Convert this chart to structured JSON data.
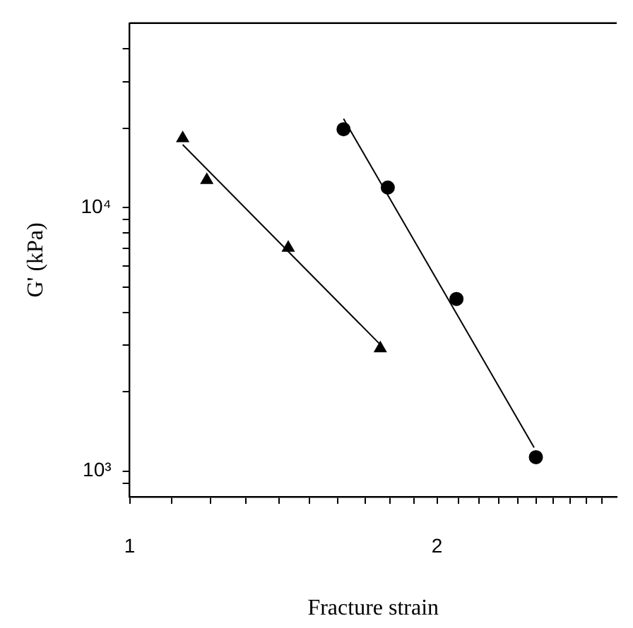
{
  "chart_data": {
    "type": "scatter",
    "xlabel": "Fracture strain",
    "ylabel": "G' (kPa)",
    "log": "xy",
    "grid": false,
    "legend": false,
    "xlim": [
      1,
      3
    ],
    "ylim": [
      800,
      50000
    ],
    "xticks": [
      1,
      {
        "value": 1.1,
        "label": null
      },
      {
        "value": 1.2,
        "label": null
      },
      {
        "value": 1.3,
        "label": null
      },
      {
        "value": 1.4,
        "label": null
      },
      {
        "value": 1.5,
        "label": null
      },
      {
        "value": 1.6,
        "label": null
      },
      {
        "value": 1.7,
        "label": null
      },
      {
        "value": 1.8,
        "label": null
      },
      {
        "value": 1.9,
        "label": null
      },
      2,
      {
        "value": 2.1,
        "label": null
      },
      {
        "value": 2.2,
        "label": null
      },
      {
        "value": 2.3,
        "label": null
      },
      {
        "value": 2.4,
        "label": null
      },
      {
        "value": 2.5,
        "label": null
      },
      {
        "value": 2.6,
        "label": null
      },
      {
        "value": 2.7,
        "label": null
      },
      {
        "value": 2.8,
        "label": null
      },
      {
        "value": 2.9,
        "label": null
      }
    ],
    "yticks": [
      {
        "value": 900,
        "label": null
      },
      {
        "value": 1000,
        "label": "10³"
      },
      {
        "value": 2000,
        "label": null
      },
      {
        "value": 3000,
        "label": null
      },
      {
        "value": 4000,
        "label": null
      },
      {
        "value": 5000,
        "label": null
      },
      {
        "value": 6000,
        "label": null
      },
      {
        "value": 7000,
        "label": null
      },
      {
        "value": 8000,
        "label": null
      },
      {
        "value": 9000,
        "label": null
      },
      {
        "value": 10000,
        "label": "10⁴"
      },
      {
        "value": 20000,
        "label": null
      },
      {
        "value": 30000,
        "label": null
      },
      {
        "value": 40000,
        "label": null
      }
    ],
    "series": [
      {
        "marker": "triangle",
        "color": "#000000",
        "x": [
          1.127,
          1.19,
          1.43,
          1.76
        ],
        "values": [
          18300,
          12700,
          7030,
          2920
        ]
      },
      {
        "marker": "circle",
        "color": "#000000",
        "x": [
          1.62,
          1.79,
          2.09,
          2.5
        ],
        "values": [
          19800,
          11900,
          4500,
          1130
        ]
      },
      {
        "type": "line",
        "marker": "none",
        "color": "#000000",
        "x": [
          1.127,
          1.76
        ],
        "values": [
          17300,
          3020
        ]
      },
      {
        "type": "line",
        "marker": "none",
        "color": "#000000",
        "x": [
          1.62,
          2.49
        ],
        "values": [
          21700,
          1230
        ]
      }
    ]
  }
}
